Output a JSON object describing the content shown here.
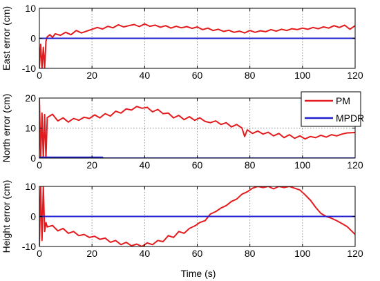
{
  "colors": {
    "pm": "#e41a1c",
    "mpdr": "#1f1fd0",
    "grid": "#8c8c8c",
    "axis": "#000000"
  },
  "chart_data": [
    {
      "type": "line",
      "ylabel": "East error (cm)",
      "xlim": [
        0,
        120
      ],
      "ylim": [
        -10,
        10
      ],
      "yticks": [
        "10",
        "0",
        "-10"
      ],
      "xticks": [
        "0",
        "20",
        "40",
        "60",
        "80",
        "100",
        "120"
      ],
      "grid": true,
      "series": [
        {
          "name": "PM",
          "x": [
            0,
            0.5,
            1,
            1.5,
            2,
            2.5,
            3,
            4,
            5,
            6,
            8,
            10,
            12,
            14,
            16,
            18,
            20,
            22,
            24,
            26,
            28,
            30,
            32,
            34,
            36,
            38,
            40,
            42,
            44,
            46,
            48,
            50,
            52,
            54,
            56,
            58,
            60,
            62,
            64,
            66,
            68,
            70,
            72,
            74,
            76,
            78,
            80,
            82,
            84,
            86,
            88,
            90,
            92,
            94,
            96,
            98,
            100,
            102,
            104,
            106,
            108,
            110,
            112,
            114,
            116,
            118,
            120
          ],
          "values": [
            -10,
            -2,
            -10,
            -3,
            -10,
            -1,
            0.5,
            1.2,
            0.3,
            1.5,
            1.0,
            2.0,
            1.2,
            2.6,
            1.8,
            2.4,
            3.0,
            3.6,
            3.1,
            4.0,
            3.5,
            4.5,
            3.8,
            4.2,
            4.6,
            3.9,
            4.8,
            4.0,
            4.4,
            3.7,
            4.2,
            3.4,
            4.0,
            3.5,
            3.9,
            3.3,
            3.8,
            2.9,
            3.4,
            2.6,
            3.0,
            2.3,
            2.7,
            2.0,
            2.4,
            1.8,
            2.6,
            2.0,
            2.5,
            2.2,
            2.9,
            2.4,
            3.0,
            2.6,
            3.2,
            2.9,
            3.4,
            3.0,
            3.6,
            3.2,
            3.8,
            3.4,
            4.2,
            3.6,
            4.4,
            3.0,
            4.2
          ]
        },
        {
          "name": "MPDR",
          "x": [
            0,
            120
          ],
          "values": [
            0,
            0
          ]
        }
      ]
    },
    {
      "type": "line",
      "ylabel": "North error (cm)",
      "xlim": [
        0,
        120
      ],
      "ylim": [
        0,
        20
      ],
      "yticks": [
        "20",
        "10",
        "0"
      ],
      "xticks": [
        "0",
        "20",
        "40",
        "60",
        "80",
        "100",
        "120"
      ],
      "grid": true,
      "series": [
        {
          "name": "PM",
          "x": [
            0,
            0.5,
            1,
            1.5,
            2,
            2.5,
            3,
            5,
            7,
            9,
            11,
            13,
            15,
            17,
            19,
            21,
            23,
            25,
            27,
            29,
            31,
            33,
            35,
            37,
            39,
            41,
            43,
            45,
            47,
            49,
            51,
            53,
            55,
            57,
            59,
            61,
            63,
            65,
            67,
            69,
            71,
            73,
            75,
            77,
            78,
            79,
            81,
            83,
            85,
            87,
            89,
            91,
            93,
            95,
            97,
            99,
            101,
            103,
            105,
            107,
            109,
            111,
            113,
            115,
            117,
            120
          ],
          "values": [
            20,
            0,
            15,
            0,
            14.5,
            0,
            13.5,
            14.6,
            12.4,
            13.4,
            12.0,
            13.2,
            12.6,
            13.6,
            13.2,
            14.4,
            13.4,
            14.8,
            14.0,
            15.6,
            15.0,
            16.4,
            16.0,
            17.2,
            16.6,
            16.9,
            15.4,
            16.2,
            14.8,
            15.0,
            13.4,
            14.2,
            12.8,
            13.8,
            12.6,
            13.4,
            12.2,
            11.8,
            12.4,
            11.2,
            11.8,
            10.4,
            11.2,
            10.0,
            7.2,
            9.4,
            8.2,
            9.0,
            8.0,
            8.6,
            7.4,
            8.2,
            6.8,
            7.8,
            6.6,
            7.4,
            6.4,
            7.2,
            6.8,
            7.6,
            7.0,
            7.8,
            7.4,
            8.0,
            8.4,
            8.5
          ]
        },
        {
          "name": "MPDR",
          "x": [
            0,
            24,
            24,
            120
          ],
          "values": [
            0.3,
            0.3,
            0,
            0
          ]
        }
      ]
    },
    {
      "type": "line",
      "ylabel": "Height error (cm)",
      "xlabel": "Time (s)",
      "xlim": [
        0,
        120
      ],
      "ylim": [
        -10,
        10
      ],
      "yticks": [
        "10",
        "0",
        "-10"
      ],
      "xticks": [
        "0",
        "20",
        "40",
        "60",
        "80",
        "100",
        "120"
      ],
      "grid": true,
      "series": [
        {
          "name": "PM",
          "x": [
            0,
            0.5,
            1,
            1.5,
            2,
            2.5,
            3,
            5,
            7,
            9,
            11,
            13,
            15,
            17,
            19,
            21,
            23,
            25,
            27,
            29,
            31,
            33,
            35,
            37,
            39,
            41,
            43,
            45,
            47,
            49,
            51,
            53,
            55,
            57,
            59,
            61,
            63,
            65,
            67,
            69,
            71,
            73,
            75,
            77,
            79,
            81,
            83,
            85,
            87,
            89,
            91,
            93,
            95,
            97,
            99,
            101,
            103,
            105,
            107,
            109,
            111,
            113,
            115,
            117,
            120
          ],
          "values": [
            -10,
            10,
            -8,
            10,
            -5,
            -2,
            -3.5,
            -3.0,
            -4.8,
            -4.0,
            -5.6,
            -5.0,
            -6.4,
            -6.0,
            -7.0,
            -6.6,
            -7.6,
            -7.2,
            -8.6,
            -8.0,
            -9.4,
            -8.6,
            -9.8,
            -9.2,
            -10,
            -8.8,
            -9.4,
            -8.0,
            -8.4,
            -6.4,
            -7.0,
            -5.0,
            -5.6,
            -4.0,
            -3.2,
            -2.0,
            -1.4,
            0.8,
            1.6,
            2.8,
            3.6,
            5.0,
            5.8,
            7.4,
            8.2,
            9.4,
            10,
            9.6,
            10,
            9.2,
            10,
            9.6,
            10,
            9.4,
            8.8,
            7.2,
            5.4,
            3.0,
            1.0,
            0,
            -0.6,
            -1.4,
            -2.4,
            -3.4,
            -6.0
          ]
        },
        {
          "name": "MPDR",
          "x": [
            0,
            120
          ],
          "values": [
            0,
            0
          ]
        }
      ]
    }
  ]
}
